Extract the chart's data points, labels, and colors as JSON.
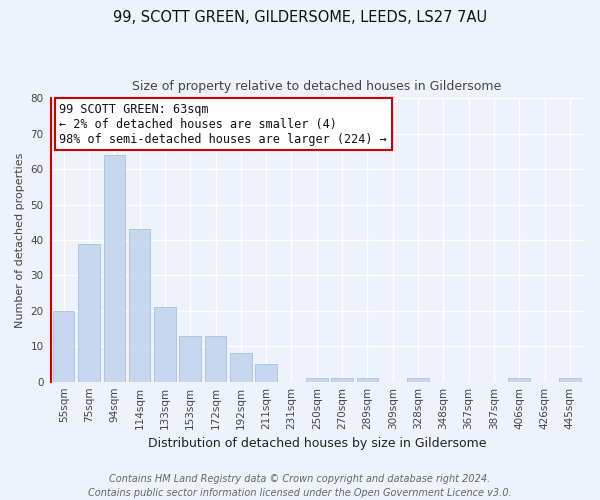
{
  "title1": "99, SCOTT GREEN, GILDERSOME, LEEDS, LS27 7AU",
  "title2": "Size of property relative to detached houses in Gildersome",
  "xlabel": "Distribution of detached houses by size in Gildersome",
  "ylabel": "Number of detached properties",
  "categories": [
    "55sqm",
    "75sqm",
    "94sqm",
    "114sqm",
    "133sqm",
    "153sqm",
    "172sqm",
    "192sqm",
    "211sqm",
    "231sqm",
    "250sqm",
    "270sqm",
    "289sqm",
    "309sqm",
    "328sqm",
    "348sqm",
    "367sqm",
    "387sqm",
    "406sqm",
    "426sqm",
    "445sqm"
  ],
  "values": [
    20,
    39,
    64,
    43,
    21,
    13,
    13,
    8,
    5,
    0,
    1,
    1,
    1,
    0,
    1,
    0,
    0,
    0,
    1,
    0,
    1
  ],
  "bar_color": "#c5d8f0",
  "annotation_box_color": "#ffffff",
  "annotation_border_color": "#cc0000",
  "ylim": [
    0,
    80
  ],
  "yticks": [
    0,
    10,
    20,
    30,
    40,
    50,
    60,
    70,
    80
  ],
  "annotation_text_line1": "99 SCOTT GREEN: 63sqm",
  "annotation_text_line2": "← 2% of detached houses are smaller (4)",
  "annotation_text_line3": "98% of semi-detached houses are larger (224) →",
  "footer_line1": "Contains HM Land Registry data © Crown copyright and database right 2024.",
  "footer_line2": "Contains public sector information licensed under the Open Government Licence v3.0.",
  "bg_color": "#eef2fa",
  "grid_color": "#ffffff",
  "title1_fontsize": 10.5,
  "title2_fontsize": 9,
  "xlabel_fontsize": 9,
  "ylabel_fontsize": 8,
  "tick_fontsize": 7.5,
  "annotation_fontsize": 8.5,
  "footer_fontsize": 7
}
